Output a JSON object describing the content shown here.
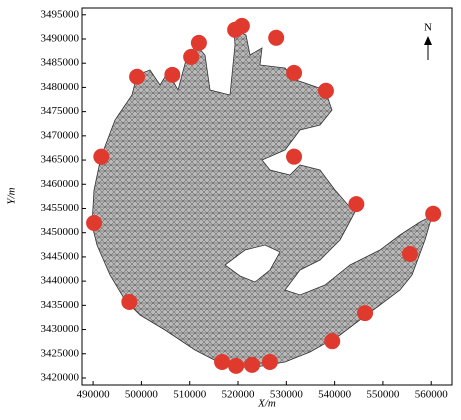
{
  "chart_data": {
    "type": "scatter",
    "x_label": "X/m",
    "y_label": "Y/m",
    "north_label": "N",
    "xlim": [
      487700,
      564300
    ],
    "ylim": [
      3418550,
      3496400
    ],
    "xticks": [
      490000,
      500000,
      510000,
      520000,
      530000,
      540000,
      550000,
      560000
    ],
    "yticks": [
      3420000,
      3425000,
      3430000,
      3435000,
      3440000,
      3445000,
      3450000,
      3455000,
      3460000,
      3465000,
      3470000,
      3475000,
      3480000,
      3485000,
      3490000,
      3495000
    ],
    "color": "#e03a2f",
    "x": [
      519400,
      520800,
      527900,
      511900,
      510300,
      499100,
      506400,
      531600,
      538200,
      491700,
      531600,
      544500,
      560400,
      490200,
      555600,
      497500,
      546300,
      539500,
      516700,
      519600,
      522900,
      526600
    ],
    "values": [
      3491900,
      3492700,
      3490250,
      3489200,
      3486300,
      3482200,
      3482600,
      3483000,
      3479300,
      3465700,
      3465700,
      3455900,
      3453900,
      3452000,
      3445600,
      3435700,
      3433400,
      3427600,
      3423300,
      3422500,
      3422700,
      3423300
    ]
  }
}
